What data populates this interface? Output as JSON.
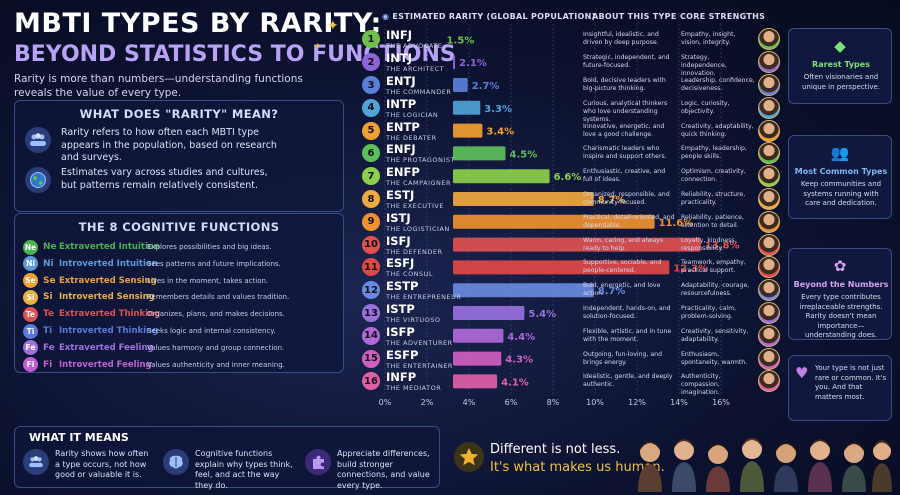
{
  "header": {
    "title": "MBTI TYPES BY RARITY:",
    "subtitle": "BEYOND STATISTICS TO FUNCTIONS",
    "intro": "Rarity is more than numbers—understanding functions reveals the value of every type."
  },
  "rarity_panel": {
    "heading": "WHAT DOES \"RARITY\" MEAN?",
    "items": [
      {
        "icon": "people-icon",
        "text": "Rarity refers to how often each MBTI type appears in the population, based on research and surveys."
      },
      {
        "icon": "globe-icon",
        "text": "Estimates vary across studies and cultures, but patterns remain relatively consistent."
      }
    ]
  },
  "functions_panel": {
    "heading": "THE 8 COGNITIVE FUNCTIONS",
    "items": [
      {
        "code": "Ne",
        "name": "Extraverted Intuition",
        "desc": "Explores possibilities and big ideas.",
        "color": "#4caf50"
      },
      {
        "code": "Ni",
        "name": "Introverted Intuition",
        "desc": "Sees patterns and future implications.",
        "color": "#5b9bd5"
      },
      {
        "code": "Se",
        "name": "Extraverted Sensing",
        "desc": "Lives in the moment, takes action.",
        "color": "#f0a030"
      },
      {
        "code": "Si",
        "name": "Introverted Sensing",
        "desc": "Remembers details and values tradition.",
        "color": "#e8b040"
      },
      {
        "code": "Te",
        "name": "Extraverted Thinking",
        "desc": "Organizes, plans, and makes decisions.",
        "color": "#e05050"
      },
      {
        "code": "Ti",
        "name": "Introverted Thinking",
        "desc": "Seeks logic and internal consistency.",
        "color": "#5a78d8"
      },
      {
        "code": "Fe",
        "name": "Extraverted Feeling",
        "desc": "Values harmony and group connection.",
        "color": "#a070e0"
      },
      {
        "code": "Fi",
        "name": "Introverted Feeling",
        "desc": "Values authenticity and inner meaning.",
        "color": "#c060d0"
      }
    ]
  },
  "chart_headers": {
    "rarity": "ESTIMATED RARITY (GLOBAL POPULATION)",
    "about": "ABOUT THIS TYPE",
    "strengths": "CORE STRENGTHS"
  },
  "chart_data": {
    "type": "bar",
    "orientation": "horizontal",
    "x_ticks": [
      "0%",
      "2%",
      "4%",
      "6%",
      "8%",
      "10%",
      "12%",
      "14%",
      "16%"
    ],
    "xlim": [
      0,
      16
    ],
    "grid": true,
    "rows": [
      {
        "rank": "1",
        "code": "INFJ",
        "name": "THE ADVOCATE",
        "value": 1.5,
        "label": "1.5%",
        "color": "#6cc04a",
        "about": "Insightful, idealistic, and driven by deep purpose.",
        "strengths": "Empathy, insight, vision, integrity."
      },
      {
        "rank": "2",
        "code": "INTJ",
        "name": "THE ARCHITECT",
        "value": 2.1,
        "label": "2.1%",
        "color": "#8e64d8",
        "about": "Strategic, independent, and future-focused.",
        "strengths": "Strategy, independence, innovation."
      },
      {
        "rank": "3",
        "code": "ENTJ",
        "name": "THE COMMANDER",
        "value": 2.7,
        "label": "2.7%",
        "color": "#5a7fd8",
        "about": "Bold, decisive leaders with big-picture thinking.",
        "strengths": "Leadership, confidence, decisiveness."
      },
      {
        "rank": "4",
        "code": "INTP",
        "name": "THE LOGICIAN",
        "value": 3.3,
        "label": "3.3%",
        "color": "#4fa3d8",
        "about": "Curious, analytical thinkers who love understanding systems.",
        "strengths": "Logic, curiosity, objectivity."
      },
      {
        "rank": "5",
        "code": "ENTP",
        "name": "THE DEBATER",
        "value": 3.4,
        "label": "3.4%",
        "color": "#f0a030",
        "about": "Innovative, energetic, and love a good challenge.",
        "strengths": "Creativity, adaptability, quick thinking."
      },
      {
        "rank": "6",
        "code": "ENFJ",
        "name": "THE PROTAGONIST",
        "value": 4.5,
        "label": "4.5%",
        "color": "#5cc05a",
        "about": "Charismatic leaders who inspire and support others.",
        "strengths": "Empathy, leadership, people skills."
      },
      {
        "rank": "7",
        "code": "ENFP",
        "name": "THE CAMPAIGNER",
        "value": 6.6,
        "label": "6.6%",
        "color": "#8ccf4a",
        "about": "Enthusiastic, creative, and full of ideas.",
        "strengths": "Optimism, creativity, connection."
      },
      {
        "rank": "8",
        "code": "ESTJ",
        "name": "THE EXECUTIVE",
        "value": 8.7,
        "label": "8.7%",
        "color": "#f0a840",
        "about": "Organized, responsible, and community-focused.",
        "strengths": "Reliability, structure, practicality."
      },
      {
        "rank": "9",
        "code": "ISTJ",
        "name": "THE LOGISTICIAN",
        "value": 11.6,
        "label": "11.6%",
        "color": "#f09030",
        "about": "Practical, detail-oriented, and dependable.",
        "strengths": "Reliability, patience, attention to detail."
      },
      {
        "rank": "10",
        "code": "ISFJ",
        "name": "THE DEFENDER",
        "value": 13.8,
        "label": "13.8%",
        "color": "#e05050",
        "about": "Warm, caring, and always ready to help.",
        "strengths": "Loyalty, kindness, responsibility."
      },
      {
        "rank": "11",
        "code": "ESFJ",
        "name": "THE CONSUL",
        "value": 12.3,
        "label": "12.3%",
        "color": "#e04848",
        "about": "Supportive, sociable, and people-centered.",
        "strengths": "Teamwork, empathy, practical support."
      },
      {
        "rank": "12",
        "code": "ESTP",
        "name": "THE ENTREPRENEUR",
        "value": 8.7,
        "label": "8.7%",
        "color": "#6a8ae0",
        "about": "Bold, energetic, and love action.",
        "strengths": "Adaptability, courage, resourcefulness."
      },
      {
        "rank": "13",
        "code": "ISTP",
        "name": "THE VIRTUOSO",
        "value": 5.4,
        "label": "5.4%",
        "color": "#9a70e0",
        "about": "Independent, hands-on, and solution-focused.",
        "strengths": "Practicality, calm, problem-solving."
      },
      {
        "rank": "14",
        "code": "ISFP",
        "name": "THE ADVENTURER",
        "value": 4.4,
        "label": "4.4%",
        "color": "#b068d8",
        "about": "Flexible, artistic, and in tune with the moment.",
        "strengths": "Creativity, sensitivity, adaptability."
      },
      {
        "rank": "15",
        "code": "ESFP",
        "name": "THE ENTERTAINER",
        "value": 4.3,
        "label": "4.3%",
        "color": "#d060c0",
        "about": "Outgoing, fun-loving, and brings energy.",
        "strengths": "Enthusiasm, spontaneity, warmth."
      },
      {
        "rank": "16",
        "code": "INFP",
        "name": "THE MEDIATOR",
        "value": 4.1,
        "label": "4.1%",
        "color": "#e060a8",
        "about": "Idealistic, gentle, and deeply authentic.",
        "strengths": "Authenticity, compassion, imagination."
      }
    ]
  },
  "cards": [
    {
      "icon": "gem-icon",
      "title": "Rarest Types",
      "text": "Often visionaries and unique in perspective.",
      "color": "#7ee07a"
    },
    {
      "icon": "people-icon",
      "title": "Most Common Types",
      "text": "Keep communities and systems running with care and dedication.",
      "color": "#7fb8f0"
    },
    {
      "icon": "brain-icon",
      "title": "Beyond the Numbers",
      "text": "Every type contributes irreplaceable strengths. Rarity doesn't mean importance—understanding does.",
      "color": "#d8a0f0"
    },
    {
      "icon": "heart-icon",
      "title": "",
      "text": "Your type is not just rare or common. It's you. And that matters most.",
      "color": "#c080e8"
    }
  ],
  "footer": {
    "heading": "WHAT IT MEANS",
    "items": [
      {
        "icon": "people-icon",
        "text": "Rarity shows how often a type occurs, not how good or valuable it is."
      },
      {
        "icon": "brain-icon",
        "text": "Cognitive functions explain why types think, feel, and act the way they do."
      },
      {
        "icon": "puzzle-icon",
        "text": "Appreciate differences, build stronger connections, and value every type."
      }
    ]
  },
  "tagline": {
    "line1": "Different is not less.",
    "line2": "It's what makes us human."
  }
}
